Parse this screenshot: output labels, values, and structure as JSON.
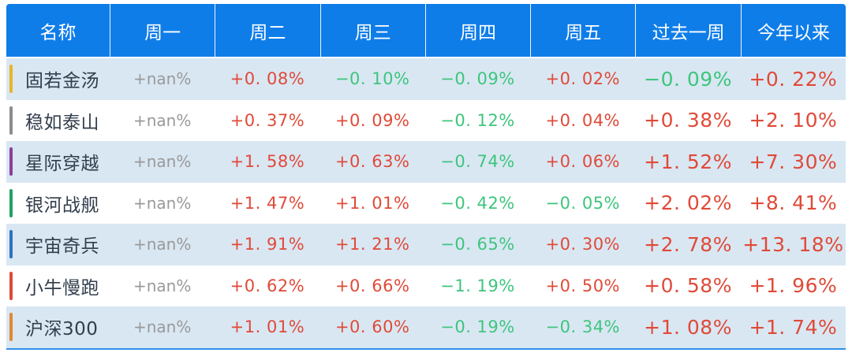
{
  "table": {
    "header": {
      "labels": [
        "名称",
        "周一",
        "周二",
        "周三",
        "周四",
        "周五",
        "过去一周",
        "今年以来"
      ],
      "bg": "#0f7de8",
      "text_color": "#ffffff",
      "divider_color": "rgba(255,255,255,0.92)"
    },
    "style": {
      "stripe_row_bg": "#d9e7f3",
      "plain_row_bg": "#ffffff",
      "positive_color": "#e04a38",
      "negative_color": "#3ec57c",
      "nan_color": "#999999",
      "name_color": "#323e4c",
      "bottom_border_color": "#2f8fe8"
    },
    "rows": [
      {
        "name": "固若金汤",
        "bar_color": "#eab427",
        "values": [
          "+nan%",
          "+0. 08%",
          "−0. 10%",
          "−0. 09%",
          "+0. 02%",
          "−0. 09%",
          "+0. 22%"
        ]
      },
      {
        "name": "稳如泰山",
        "bar_color": "#8c8c8c",
        "values": [
          "+nan%",
          "+0. 37%",
          "+0. 09%",
          "−0. 12%",
          "+0. 04%",
          "+0. 38%",
          "+2. 10%"
        ]
      },
      {
        "name": "星际穿越",
        "bar_color": "#8e3d9c",
        "values": [
          "+nan%",
          "+1. 58%",
          "+0. 63%",
          "−0. 74%",
          "+0. 06%",
          "+1. 52%",
          "+7. 30%"
        ]
      },
      {
        "name": "银河战舰",
        "bar_color": "#21a265",
        "values": [
          "+nan%",
          "+1. 47%",
          "+1. 01%",
          "−0. 42%",
          "−0. 05%",
          "+2. 02%",
          "+8. 41%"
        ]
      },
      {
        "name": "宇宙奇兵",
        "bar_color": "#2f72bd",
        "values": [
          "+nan%",
          "+1. 91%",
          "+1. 21%",
          "−0. 65%",
          "+0. 30%",
          "+2. 78%",
          "+13. 18%"
        ]
      },
      {
        "name": "小牛慢跑",
        "bar_color": "#dd4a3a",
        "values": [
          "+nan%",
          "+0. 62%",
          "+0. 66%",
          "−1. 19%",
          "+0. 50%",
          "+0. 58%",
          "+1. 96%"
        ]
      },
      {
        "name": "沪深300",
        "bar_color": "#e08931",
        "values": [
          "+nan%",
          "+1. 01%",
          "+0. 60%",
          "−0. 19%",
          "−0. 34%",
          "+1. 08%",
          "+1. 74%"
        ]
      }
    ]
  }
}
